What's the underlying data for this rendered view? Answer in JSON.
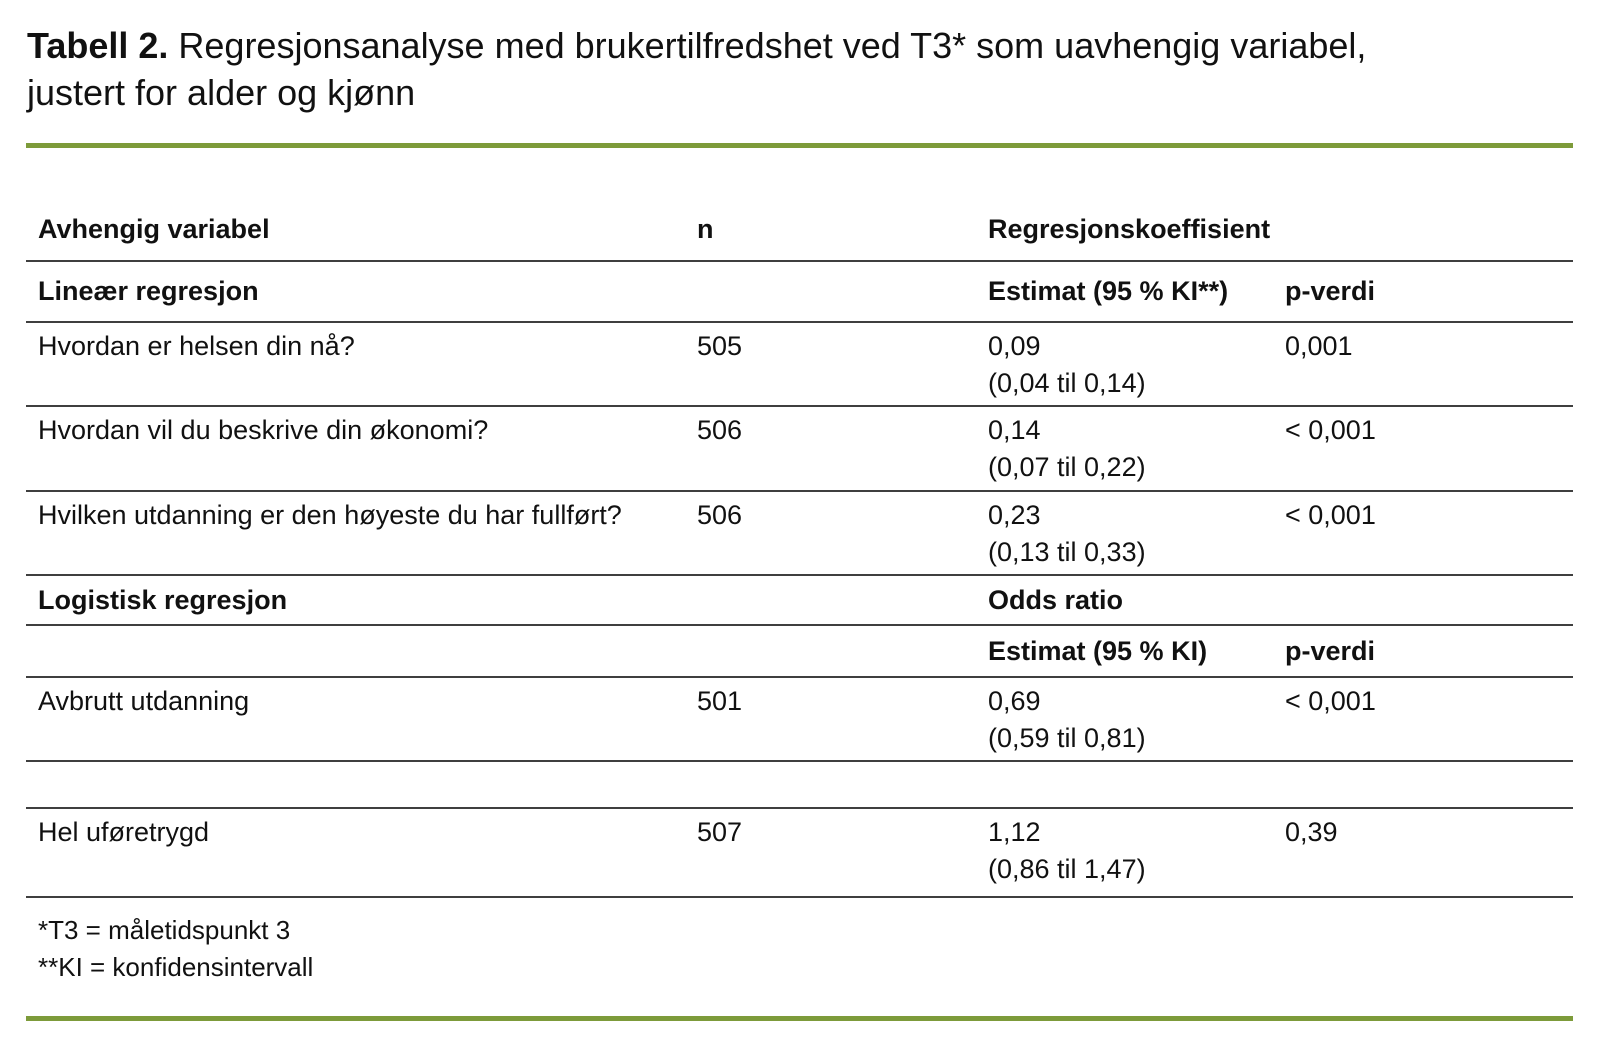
{
  "title": {
    "label": "Tabell 2.",
    "line1": "Regresjonsanalyse med brukertilfredshet ved T3* som uavhengig variabel,",
    "line2": "justert for alder og kjønn"
  },
  "colors": {
    "accent_green": "#7D9B3A",
    "rule_gray": "#3f3f3f",
    "text": "#111111"
  },
  "table": {
    "header": {
      "col1": "Avhengig variabel",
      "col2": "n",
      "col3": "Regresjonskoeffisient"
    },
    "rows": [
      {
        "type": "subheader",
        "variable": "Lineær regresjon",
        "n": "",
        "estimate": "Estimat (95 % KI**)",
        "ci": "",
        "p": "p-verdi"
      },
      {
        "type": "data",
        "variable": "Hvordan er helsen din nå?",
        "n": "505",
        "estimate": "0,09",
        "ci": "(0,04 til 0,14)",
        "p": "0,001"
      },
      {
        "type": "data",
        "variable": "Hvordan vil du beskrive din økonomi?",
        "n": "506",
        "estimate": "0,14",
        "ci": "(0,07 til 0,22)",
        "p": "< 0,001"
      },
      {
        "type": "data",
        "variable": "Hvilken utdanning er den høyeste du har fullført?",
        "n": "506",
        "estimate": "0,23",
        "ci": "(0,13 til 0,33)",
        "p": "< 0,001"
      },
      {
        "type": "subheader",
        "variable": "Logistisk regresjon",
        "n": "",
        "estimate": "Odds ratio",
        "ci": "",
        "p": ""
      },
      {
        "type": "subheader",
        "variable": "",
        "n": "",
        "estimate": "Estimat (95 % KI)",
        "ci": "",
        "p": "p-verdi"
      },
      {
        "type": "data",
        "variable": "Avbrutt utdanning",
        "n": "501",
        "estimate": "0,69",
        "ci": "(0,59 til 0,81)",
        "p": "< 0,001"
      },
      {
        "type": "spacer",
        "variable": "",
        "n": "",
        "estimate": "",
        "ci": "",
        "p": ""
      },
      {
        "type": "data",
        "variable": "Hel uføretrygd",
        "n": "507",
        "estimate": "1,12",
        "ci": "(0,86 til 1,47)",
        "p": "0,39"
      }
    ],
    "footnotes": {
      "line1": "*T3 = måletidspunkt 3",
      "line2": "**KI = konfidensintervall"
    }
  }
}
